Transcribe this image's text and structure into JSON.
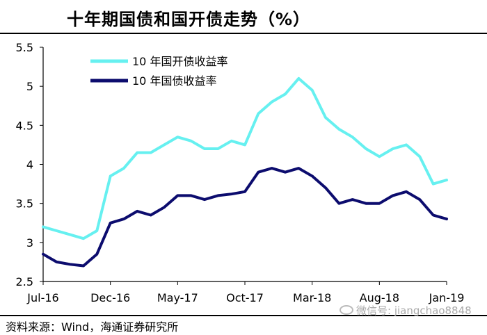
{
  "page": {
    "title": "十年期国债和国开债走势（%）",
    "source": "资料来源：Wind，海通证券研究所",
    "watermark": "微信号: jiangchao8848"
  },
  "chart_data": {
    "type": "line",
    "x_ticks": [
      "Jul-16",
      "Dec-16",
      "May-17",
      "Oct-17",
      "Mar-18",
      "Aug-18",
      "Jan-19"
    ],
    "ylim": [
      2.5,
      5.5
    ],
    "y_ticks": [
      "2.5",
      "3",
      "3.5",
      "4",
      "4.5",
      "5",
      "5.5"
    ],
    "grid": false,
    "legend_position": "top-left",
    "series": [
      {
        "name": "10 年国开债收益率",
        "color": "#66f0f0",
        "x": [
          "2016-07",
          "2016-08",
          "2016-09",
          "2016-10",
          "2016-11",
          "2016-12",
          "2017-01",
          "2017-02",
          "2017-03",
          "2017-04",
          "2017-05",
          "2017-06",
          "2017-07",
          "2017-08",
          "2017-09",
          "2017-10",
          "2017-11",
          "2017-12",
          "2018-01",
          "2018-02",
          "2018-03",
          "2018-04",
          "2018-05",
          "2018-06",
          "2018-07",
          "2018-08",
          "2018-09",
          "2018-10",
          "2018-11",
          "2018-12",
          "2019-01"
        ],
        "values": [
          3.2,
          3.15,
          3.1,
          3.05,
          3.15,
          3.85,
          3.95,
          4.15,
          4.15,
          4.25,
          4.35,
          4.3,
          4.2,
          4.2,
          4.3,
          4.25,
          4.65,
          4.8,
          4.9,
          5.1,
          4.95,
          4.6,
          4.45,
          4.35,
          4.2,
          4.1,
          4.2,
          4.25,
          4.1,
          3.75,
          3.8
        ]
      },
      {
        "name": "10 年国债收益率",
        "color": "#0c0c6e",
        "x": [
          "2016-07",
          "2016-08",
          "2016-09",
          "2016-10",
          "2016-11",
          "2016-12",
          "2017-01",
          "2017-02",
          "2017-03",
          "2017-04",
          "2017-05",
          "2017-06",
          "2017-07",
          "2017-08",
          "2017-09",
          "2017-10",
          "2017-11",
          "2017-12",
          "2018-01",
          "2018-02",
          "2018-03",
          "2018-04",
          "2018-05",
          "2018-06",
          "2018-07",
          "2018-08",
          "2018-09",
          "2018-10",
          "2018-11",
          "2018-12",
          "2019-01"
        ],
        "values": [
          2.85,
          2.75,
          2.72,
          2.7,
          2.85,
          3.25,
          3.3,
          3.4,
          3.35,
          3.45,
          3.6,
          3.6,
          3.55,
          3.6,
          3.62,
          3.65,
          3.9,
          3.95,
          3.9,
          3.95,
          3.85,
          3.7,
          3.5,
          3.55,
          3.5,
          3.5,
          3.6,
          3.65,
          3.55,
          3.35,
          3.3
        ]
      }
    ]
  }
}
